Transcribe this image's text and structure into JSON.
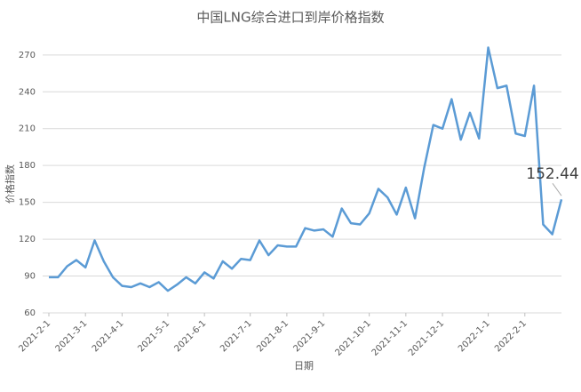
{
  "chart_data": {
    "type": "line",
    "title": "中国LNG综合进口到岸价格指数",
    "xlabel": "日期",
    "ylabel": "价格指数",
    "categories": [
      "2021-2-1",
      null,
      null,
      null,
      "2021-3-1",
      null,
      null,
      null,
      "2021-4-1",
      null,
      null,
      null,
      null,
      "2021-5-1",
      null,
      null,
      null,
      "2021-6-1",
      null,
      null,
      null,
      null,
      "2021-7-1",
      null,
      null,
      null,
      "2021-8-1",
      null,
      null,
      null,
      "2021-9-1",
      null,
      null,
      null,
      null,
      "2021-10-1",
      null,
      null,
      null,
      "2021-11-1",
      null,
      null,
      null,
      "2021-12-1",
      null,
      null,
      null,
      null,
      "2022-1-1",
      null,
      null,
      null,
      "2022-2-1",
      null,
      null,
      null,
      null
    ],
    "values": [
      89,
      89,
      98,
      103,
      97,
      119,
      102,
      89,
      82,
      81,
      84,
      81,
      85,
      78,
      83,
      89,
      84,
      93,
      88,
      102,
      96,
      104,
      103,
      119,
      107,
      115,
      114,
      114,
      129,
      127,
      128,
      122,
      145,
      133,
      132,
      141,
      161,
      154,
      140,
      162,
      137,
      178,
      213,
      210,
      234,
      201,
      223,
      202,
      276,
      243,
      245,
      206,
      204,
      245,
      132,
      124,
      152.44
    ],
    "color": "#5b9bd5",
    "ylim": [
      60,
      280
    ],
    "yticks": [
      60,
      90,
      120,
      150,
      180,
      210,
      240,
      270
    ],
    "grid": true
  }
}
